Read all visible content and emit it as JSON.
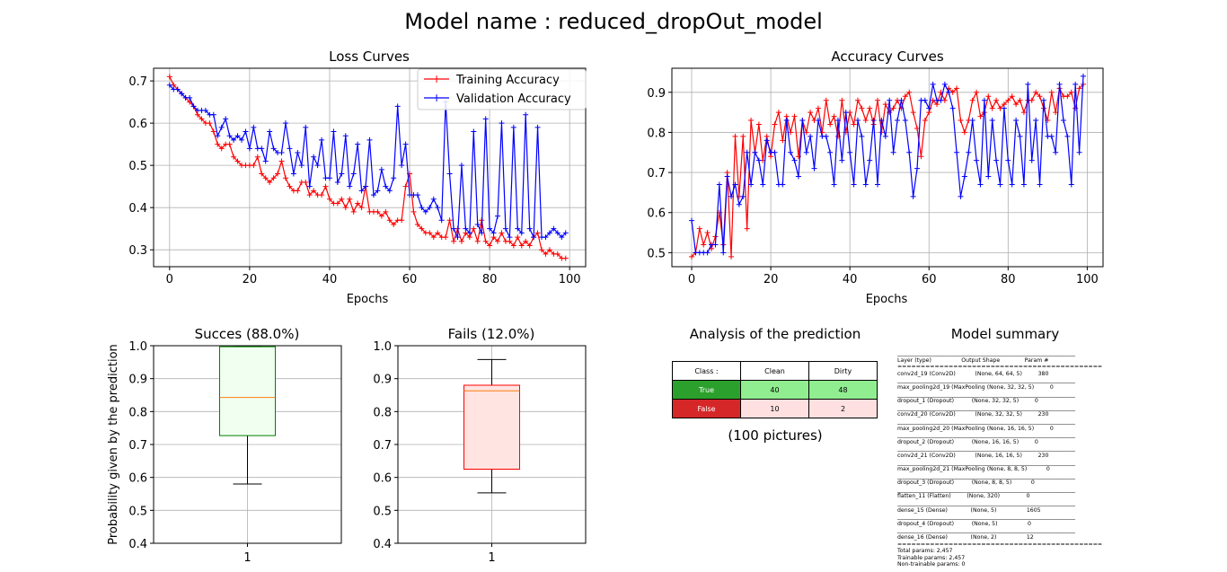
{
  "figure": {
    "title": "Model name : reduced_dropOut_model"
  },
  "colors": {
    "train": "#ff0000",
    "val": "#0000ff",
    "grid": "#b0b0b0",
    "true_cell": "#2ca02c",
    "false_cell": "#d62728",
    "light_green": "#90ee90",
    "light_red": "#ffe0e0",
    "success_box": "#f0fff0",
    "success_edge": "#008000",
    "fail_box": "#ffe4e1",
    "fail_edge": "#ff0000",
    "median": "#ff7f0e"
  },
  "chart_data": [
    {
      "id": "loss",
      "type": "line",
      "title": "Loss Curves",
      "xlabel": "Epochs",
      "ylabel": "",
      "xlim": [
        -4,
        104
      ],
      "ylim": [
        0.26,
        0.73
      ],
      "xticks": [
        "0",
        "20",
        "40",
        "60",
        "80",
        "100"
      ],
      "yticks": [
        "0.3",
        "0.4",
        "0.5",
        "0.6",
        "0.7"
      ],
      "grid": true,
      "legend_position": "upper-right",
      "series": [
        {
          "name": "Training Accuracy",
          "color": "#ff0000",
          "values": [
            0.71,
            0.69,
            0.68,
            0.67,
            0.66,
            0.65,
            0.64,
            0.62,
            0.61,
            0.6,
            0.6,
            0.58,
            0.55,
            0.54,
            0.55,
            0.55,
            0.52,
            0.51,
            0.5,
            0.5,
            0.5,
            0.5,
            0.52,
            0.48,
            0.47,
            0.46,
            0.47,
            0.48,
            0.51,
            0.47,
            0.45,
            0.44,
            0.44,
            0.46,
            0.46,
            0.43,
            0.44,
            0.43,
            0.43,
            0.45,
            0.42,
            0.41,
            0.41,
            0.42,
            0.4,
            0.42,
            0.39,
            0.41,
            0.4,
            0.45,
            0.39,
            0.39,
            0.39,
            0.38,
            0.39,
            0.37,
            0.36,
            0.37,
            0.37,
            0.45,
            0.48,
            0.39,
            0.36,
            0.35,
            0.34,
            0.34,
            0.33,
            0.34,
            0.33,
            0.33,
            0.37,
            0.32,
            0.35,
            0.32,
            0.34,
            0.33,
            0.35,
            0.32,
            0.37,
            0.32,
            0.31,
            0.33,
            0.32,
            0.34,
            0.32,
            0.32,
            0.31,
            0.33,
            0.31,
            0.32,
            0.31,
            0.33,
            0.34,
            0.3,
            0.29,
            0.3,
            0.29,
            0.29,
            0.28,
            0.28
          ]
        },
        {
          "name": "Validation Accuracy",
          "color": "#0000ff",
          "values": [
            0.69,
            0.68,
            0.68,
            0.67,
            0.66,
            0.66,
            0.64,
            0.63,
            0.63,
            0.63,
            0.62,
            0.62,
            0.57,
            0.59,
            0.61,
            0.57,
            0.56,
            0.57,
            0.56,
            0.58,
            0.54,
            0.59,
            0.54,
            0.54,
            0.51,
            0.58,
            0.54,
            0.53,
            0.53,
            0.6,
            0.54,
            0.48,
            0.53,
            0.5,
            0.59,
            0.45,
            0.52,
            0.5,
            0.56,
            0.47,
            0.47,
            0.58,
            0.46,
            0.48,
            0.57,
            0.45,
            0.48,
            0.55,
            0.44,
            0.45,
            0.56,
            0.43,
            0.44,
            0.49,
            0.45,
            0.44,
            0.47,
            0.64,
            0.5,
            0.55,
            0.43,
            0.43,
            0.43,
            0.4,
            0.39,
            0.4,
            0.42,
            0.4,
            0.37,
            0.65,
            0.48,
            0.35,
            0.33,
            0.5,
            0.35,
            0.34,
            0.58,
            0.36,
            0.34,
            0.61,
            0.35,
            0.34,
            0.38,
            0.6,
            0.35,
            0.33,
            0.59,
            0.35,
            0.34,
            0.62,
            0.35,
            0.33,
            0.59,
            0.33,
            0.33,
            0.34,
            0.35,
            0.34,
            0.33,
            0.34
          ]
        }
      ]
    },
    {
      "id": "accuracy",
      "type": "line",
      "title": "Accuracy Curves",
      "xlabel": "Epochs",
      "ylabel": "",
      "xlim": [
        -5,
        104
      ],
      "ylim": [
        0.465,
        0.96
      ],
      "xticks": [
        "0",
        "20",
        "40",
        "60",
        "80",
        "100"
      ],
      "yticks": [
        "0.5",
        "0.6",
        "0.7",
        "0.8",
        "0.9"
      ],
      "grid": true,
      "series": [
        {
          "name": "",
          "color": "#ff0000",
          "values": [
            0.49,
            0.5,
            0.56,
            0.52,
            0.55,
            0.51,
            0.54,
            0.6,
            0.52,
            0.7,
            0.49,
            0.79,
            0.64,
            0.79,
            0.56,
            0.83,
            0.75,
            0.82,
            0.73,
            0.79,
            0.74,
            0.82,
            0.85,
            0.78,
            0.84,
            0.8,
            0.84,
            0.74,
            0.83,
            0.8,
            0.85,
            0.83,
            0.86,
            0.8,
            0.88,
            0.82,
            0.84,
            0.79,
            0.88,
            0.8,
            0.85,
            0.82,
            0.88,
            0.86,
            0.83,
            0.86,
            0.82,
            0.88,
            0.8,
            0.87,
            0.85,
            0.86,
            0.88,
            0.86,
            0.89,
            0.9,
            0.85,
            0.81,
            0.74,
            0.83,
            0.85,
            0.88,
            0.87,
            0.9,
            0.88,
            0.91,
            0.9,
            0.91,
            0.83,
            0.8,
            0.83,
            0.88,
            0.9,
            0.84,
            0.85,
            0.89,
            0.86,
            0.88,
            0.86,
            0.87,
            0.88,
            0.89,
            0.87,
            0.88,
            0.85,
            0.88,
            0.88,
            0.9,
            0.89,
            0.86,
            0.83,
            0.9,
            0.85,
            0.91,
            0.89,
            0.89,
            0.9,
            0.86,
            0.91,
            0.92
          ]
        },
        {
          "name": "",
          "color": "#0000ff",
          "values": [
            0.58,
            0.5,
            0.5,
            0.5,
            0.5,
            0.52,
            0.52,
            0.67,
            0.5,
            0.69,
            0.64,
            0.67,
            0.62,
            0.64,
            0.75,
            0.67,
            0.75,
            0.73,
            0.67,
            0.78,
            0.75,
            0.75,
            0.67,
            0.67,
            0.83,
            0.75,
            0.73,
            0.69,
            0.83,
            0.75,
            0.79,
            0.71,
            0.83,
            0.79,
            0.79,
            0.75,
            0.67,
            0.83,
            0.73,
            0.85,
            0.75,
            0.67,
            0.83,
            0.79,
            0.67,
            0.73,
            0.83,
            0.67,
            0.83,
            0.79,
            0.88,
            0.75,
            0.83,
            0.88,
            0.83,
            0.75,
            0.64,
            0.71,
            0.88,
            0.88,
            0.86,
            0.92,
            0.88,
            0.88,
            0.92,
            0.9,
            0.86,
            0.75,
            0.64,
            0.69,
            0.75,
            0.83,
            0.73,
            0.67,
            0.88,
            0.69,
            0.83,
            0.73,
            0.67,
            0.86,
            0.73,
            0.67,
            0.83,
            0.79,
            0.67,
            0.92,
            0.73,
            0.83,
            0.67,
            0.88,
            0.79,
            0.79,
            0.75,
            0.92,
            0.83,
            0.79,
            0.67,
            0.92,
            0.75,
            0.94
          ]
        }
      ]
    },
    {
      "id": "success-box",
      "type": "box",
      "title": "Succes (88.0%)",
      "ylabel": "Probability given by the prediction",
      "xtick": "1",
      "ylim": [
        0.4,
        1.0
      ],
      "yticks": [
        "0.4",
        "0.5",
        "0.6",
        "0.7",
        "0.8",
        "0.9",
        "1.0"
      ],
      "grid": true,
      "stats": {
        "whislo": 0.58,
        "q1": 0.727,
        "med": 0.843,
        "q3": 0.997,
        "whishi": 0.997
      }
    },
    {
      "id": "fail-box",
      "type": "box",
      "title": "Fails (12.0%)",
      "ylabel": "",
      "xtick": "1",
      "ylim": [
        0.4,
        1.0
      ],
      "yticks": [
        "0.4",
        "0.5",
        "0.6",
        "0.7",
        "0.8",
        "0.9",
        "1.0"
      ],
      "grid": true,
      "stats": {
        "whislo": 0.553,
        "q1": 0.625,
        "med": 0.863,
        "q3": 0.88,
        "whishi": 0.958
      }
    },
    {
      "id": "analysis",
      "type": "table",
      "title": "Analysis of the prediction",
      "subtitle": "(100 pictures)",
      "header": [
        "Class :",
        "Clean",
        "Dirty"
      ],
      "rows": [
        {
          "label": "True",
          "values": [
            "40",
            "48"
          ]
        },
        {
          "label": "False",
          "values": [
            "10",
            "2"
          ]
        }
      ]
    }
  ],
  "summary": {
    "title": "Model summary",
    "lines": [
      "________________________________________________________________",
      "Layer (type)                 Output Shape              Param #",
      "================================================================",
      "conv2d_19 (Conv2D)           (None, 64, 64, 5)         380",
      "________________________________________________________________",
      "max_pooling2d_19 (MaxPooling (None, 32, 32, 5)         0",
      "________________________________________________________________",
      "dropout_1 (Dropout)          (None, 32, 32, 5)         0",
      "________________________________________________________________",
      "conv2d_20 (Conv2D)           (None, 32, 32, 5)         230",
      "________________________________________________________________",
      "max_pooling2d_20 (MaxPooling (None, 16, 16, 5)         0",
      "________________________________________________________________",
      "dropout_2 (Dropout)          (None, 16, 16, 5)         0",
      "________________________________________________________________",
      "conv2d_21 (Conv2D)           (None, 16, 16, 5)         230",
      "________________________________________________________________",
      "max_pooling2d_21 (MaxPooling (None, 8, 8, 5)           0",
      "________________________________________________________________",
      "dropout_3 (Dropout)          (None, 8, 8, 5)           0",
      "________________________________________________________________",
      "flatten_11 (Flatten)         (None, 320)               0",
      "________________________________________________________________",
      "dense_15 (Dense)             (None, 5)                 1605",
      "________________________________________________________________",
      "dropout_4 (Dropout)          (None, 5)                 0",
      "________________________________________________________________",
      "dense_16 (Dense)             (None, 2)                 12",
      "================================================================",
      "Total params: 2,457",
      "Trainable params: 2,457",
      "Non-trainable params: 0",
      "________________________________________________________________"
    ]
  }
}
